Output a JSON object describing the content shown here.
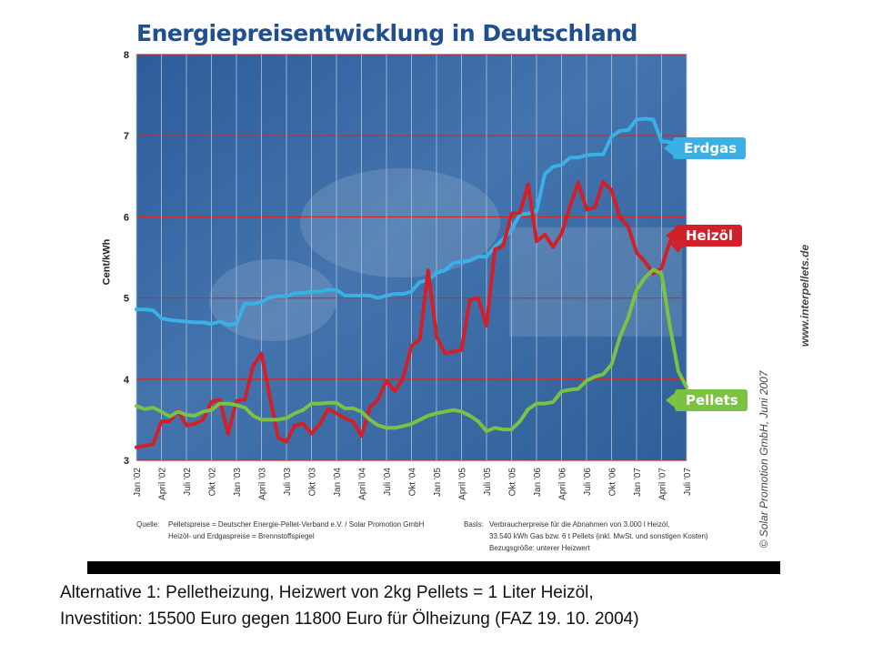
{
  "chart_data": {
    "type": "line",
    "title": "Energiepreisentwicklung in Deutschland",
    "ylabel": "Cent/kWh",
    "ylim": [
      3,
      8
    ],
    "yticks": [
      "3",
      "4",
      "5",
      "6",
      "7",
      "8"
    ],
    "x_labels": [
      "Jan '02",
      "April '02",
      "Juli '02",
      "Okt '02",
      "Jan '03",
      "April '03",
      "Juli '03",
      "Okt '03",
      "Jan '04",
      "April '04",
      "Juli '04",
      "Okt '04",
      "Jan '05",
      "April '05",
      "Juli '05",
      "Okt '05",
      "Jan '06",
      "April '06",
      "Juli '06",
      "Okt '06",
      "Jan '07",
      "April '07",
      "Juli '07"
    ],
    "grid": true,
    "series": [
      {
        "name": "Erdgas",
        "color": "#3ab0e6",
        "values": [
          4.86,
          4.86,
          4.85,
          4.75,
          4.73,
          4.72,
          4.71,
          4.7,
          4.7,
          4.68,
          4.71,
          4.67,
          4.68,
          4.93,
          4.93,
          4.95,
          5.01,
          5.02,
          5.02,
          5.06,
          5.06,
          5.08,
          5.08,
          5.1,
          5.1,
          5.03,
          5.03,
          5.03,
          5.03,
          5.0,
          5.03,
          5.05,
          5.05,
          5.08,
          5.2,
          5.22,
          5.31,
          5.34,
          5.43,
          5.45,
          5.46,
          5.51,
          5.51,
          5.63,
          5.73,
          5.84,
          6.03,
          6.04,
          6.07,
          6.53,
          6.62,
          6.64,
          6.73,
          6.73,
          6.76,
          6.77,
          6.77,
          6.99,
          7.06,
          7.07,
          7.2,
          7.21,
          7.2,
          6.93,
          6.92,
          6.9,
          6.91
        ]
      },
      {
        "name": "Heizöl",
        "color": "#d0202a",
        "values": [
          3.16,
          3.18,
          3.2,
          3.48,
          3.48,
          3.61,
          3.43,
          3.45,
          3.5,
          3.72,
          3.75,
          3.33,
          3.73,
          3.75,
          4.16,
          4.32,
          3.78,
          3.28,
          3.23,
          3.43,
          3.45,
          3.33,
          3.45,
          3.63,
          3.58,
          3.52,
          3.48,
          3.3,
          3.65,
          3.75,
          3.98,
          3.85,
          4.02,
          4.41,
          4.49,
          5.34,
          4.53,
          4.32,
          4.34,
          4.36,
          4.98,
          5.0,
          4.66,
          5.6,
          5.64,
          6.04,
          6.05,
          6.4,
          5.7,
          5.78,
          5.63,
          5.79,
          6.13,
          6.42,
          6.09,
          6.12,
          6.43,
          6.33,
          5.99,
          5.88,
          5.56,
          5.45,
          5.3,
          5.37,
          5.7,
          5.59,
          5.78
        ]
      },
      {
        "name": "Pellets",
        "color": "#7bc142",
        "values": [
          3.67,
          3.63,
          3.65,
          3.6,
          3.54,
          3.6,
          3.56,
          3.55,
          3.6,
          3.62,
          3.7,
          3.7,
          3.68,
          3.65,
          3.55,
          3.5,
          3.5,
          3.5,
          3.52,
          3.58,
          3.62,
          3.7,
          3.7,
          3.71,
          3.71,
          3.64,
          3.64,
          3.6,
          3.5,
          3.43,
          3.4,
          3.4,
          3.42,
          3.45,
          3.5,
          3.55,
          3.58,
          3.6,
          3.62,
          3.6,
          3.55,
          3.48,
          3.36,
          3.4,
          3.38,
          3.38,
          3.48,
          3.63,
          3.7,
          3.7,
          3.72,
          3.85,
          3.87,
          3.88,
          3.98,
          4.03,
          4.06,
          4.18,
          4.52,
          4.76,
          5.1,
          5.25,
          5.35,
          5.3,
          4.65,
          4.1,
          3.9
        ]
      }
    ]
  },
  "legend": {
    "erdgas": "Erdgas",
    "heizoel": "Heizöl",
    "pellets": "Pellets"
  },
  "watermark": {
    "site": "www.interpellets.de",
    "copyright": "© Solar Promotion GmbH, Juni 2007"
  },
  "source": {
    "quelle_label": "Quelle:",
    "quelle_line1": "Pelletspreise = Deutscher Energie-Pellet-Verband e.V. / Solar Promotion GmbH",
    "quelle_line2": "Heizöl- und Erdgaspreise = Brennstoffspiegel",
    "basis_label": "Basis:",
    "basis_line1": "Verbraucherpreise für die Abnahmen von 3.000 l Heizöl,",
    "basis_line2": "33.540 kWh Gas bzw. 6 t Pellets (inkl. MwSt. und sonstigen Kosten)",
    "basis_line3": "Bezugsgröße: unterer Heizwert"
  },
  "caption": {
    "line1": "Alternative 1: Pelletheizung, Heizwert von 2kg Pellets = 1 Liter Heizöl,",
    "line2": "Investition: 15500 Euro gegen  11800 Euro für Ölheizung  (FAZ 19. 10. 2004)"
  }
}
